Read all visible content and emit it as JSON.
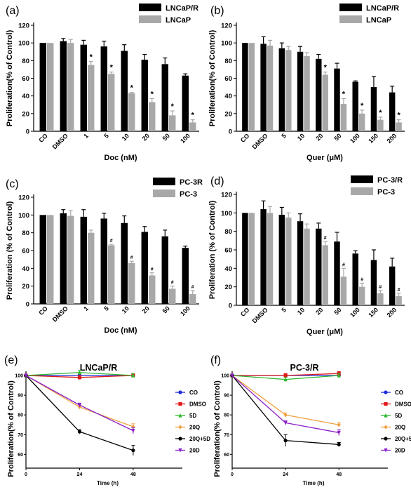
{
  "chart_data": [
    {
      "id": "a",
      "panel_label": "(a)",
      "type": "bar",
      "ylabel": "Proliferation(% of Control)",
      "xlabel": "Doc (nM)",
      "ylim": [
        0,
        120
      ],
      "yticks": [
        0,
        20,
        40,
        60,
        80,
        100,
        120
      ],
      "categories": [
        "CO",
        "DMSO",
        "1",
        "5",
        "10",
        "20",
        "50",
        "100"
      ],
      "series": [
        {
          "name": "LNCaP/R",
          "color": "#000000",
          "values": [
            100,
            102,
            98,
            96,
            91,
            81,
            76,
            63
          ],
          "errors": [
            0,
            3,
            5,
            6,
            7,
            6,
            7,
            2
          ]
        },
        {
          "name": "LNCaP",
          "color": "#a8a8a8",
          "values": [
            100,
            100,
            75,
            65,
            43,
            33,
            18,
            10
          ],
          "errors": [
            0,
            4,
            4,
            2,
            1,
            4,
            5,
            3
          ]
        }
      ],
      "annotations": [
        "",
        "",
        "*",
        "*",
        "*",
        "*",
        "*",
        "*"
      ],
      "legend_position": "top-right"
    },
    {
      "id": "b",
      "panel_label": "(b)",
      "type": "bar",
      "ylabel": "Proliferation(% of Control)",
      "xlabel": "Quer (μM)",
      "ylim": [
        0,
        120
      ],
      "yticks": [
        0,
        20,
        40,
        60,
        80,
        100,
        120
      ],
      "categories": [
        "CO",
        "DMSO",
        "5",
        "10",
        "20",
        "50",
        "100",
        "150",
        "200"
      ],
      "series": [
        {
          "name": "LNCaP/R",
          "color": "#000000",
          "values": [
            100,
            99,
            94,
            90,
            82,
            71,
            56,
            50,
            44
          ],
          "errors": [
            0,
            8,
            6,
            6,
            5,
            6,
            1,
            12,
            7
          ]
        },
        {
          "name": "LNCaP",
          "color": "#a8a8a8",
          "values": [
            100,
            97,
            92,
            85,
            64,
            31,
            20,
            13,
            10
          ],
          "errors": [
            0,
            6,
            4,
            4,
            3,
            6,
            4,
            3,
            3
          ]
        }
      ],
      "annotations": [
        "",
        "",
        "",
        "",
        "*",
        "*",
        "*",
        "*",
        "*"
      ],
      "legend_position": "top-right"
    },
    {
      "id": "c",
      "panel_label": "(c)",
      "type": "bar",
      "ylabel": "Proliferation (% of Control)",
      "xlabel": "Doc (nM)",
      "ylim": [
        0,
        120
      ],
      "yticks": [
        0,
        20,
        40,
        60,
        80,
        100,
        120
      ],
      "categories": [
        "CO",
        "DMSO",
        "1",
        "5",
        "10",
        "20",
        "50",
        "100"
      ],
      "series": [
        {
          "name": "PC-3R",
          "color": "#000000",
          "values": [
            100,
            102,
            98,
            96,
            91,
            81,
            76,
            63
          ],
          "errors": [
            0,
            4,
            8,
            6,
            8,
            6,
            7,
            2
          ]
        },
        {
          "name": "PC-3",
          "color": "#a8a8a8",
          "values": [
            100,
            99,
            80,
            66,
            46,
            32,
            17,
            11
          ],
          "errors": [
            0,
            6,
            3,
            1,
            2,
            3,
            3,
            4
          ]
        }
      ],
      "annotations": [
        "",
        "",
        "",
        "#",
        "#",
        "#",
        "#",
        "#"
      ],
      "legend_position": "top-right"
    },
    {
      "id": "d",
      "panel_label": "(d)",
      "type": "bar",
      "ylabel": "Proliferation (% of Control)",
      "xlabel": "Quer (μM)",
      "ylim": [
        0,
        120
      ],
      "yticks": [
        0,
        20,
        40,
        60,
        80,
        100,
        120
      ],
      "categories": [
        "CO",
        "DMSO",
        "5",
        "10",
        "20",
        "50",
        "100",
        "150",
        "200"
      ],
      "series": [
        {
          "name": "PC-3/R",
          "color": "#000000",
          "values": [
            100,
            104,
            98,
            91,
            83,
            69,
            56,
            49,
            42
          ],
          "errors": [
            0,
            9,
            8,
            8,
            6,
            10,
            3,
            11,
            9
          ]
        },
        {
          "name": "PC-3",
          "color": "#a8a8a8",
          "values": [
            100,
            100,
            95,
            83,
            65,
            31,
            20,
            13,
            10
          ],
          "errors": [
            0,
            7,
            5,
            5,
            4,
            9,
            4,
            3,
            3
          ]
        }
      ],
      "annotations": [
        "",
        "",
        "",
        "",
        "#",
        "#",
        "#",
        "#",
        "#"
      ],
      "legend_position": "top-right"
    },
    {
      "id": "e",
      "panel_label": "(e)",
      "type": "line",
      "title": "LNCaP/R",
      "ylabel": "Proliferation(% of Control)",
      "xlabel": "Time (h)",
      "x": [
        0,
        24,
        48
      ],
      "xticks": [
        0,
        24,
        48
      ],
      "xlim": [
        0,
        70
      ],
      "ylim": [
        53,
        100
      ],
      "yticks": [
        60,
        70,
        80,
        90,
        100
      ],
      "series": [
        {
          "name": "CO",
          "color": "#1d2bd8",
          "marker": "circle",
          "values": [
            100,
            100,
            100
          ],
          "errors": [
            0,
            0.5,
            0.5
          ]
        },
        {
          "name": "DMSO",
          "color": "#e01a1a",
          "marker": "square",
          "values": [
            100,
            99,
            100
          ],
          "errors": [
            0,
            1,
            1
          ]
        },
        {
          "name": "5D",
          "color": "#2fb82f",
          "marker": "triangle",
          "values": [
            100,
            101.5,
            100
          ],
          "errors": [
            0,
            1,
            1
          ]
        },
        {
          "name": "20Q",
          "color": "#f0a040",
          "marker": "diamond",
          "values": [
            100,
            84,
            74
          ],
          "errors": [
            0,
            1,
            1.5
          ]
        },
        {
          "name": "20Q+5D",
          "color": "#000000",
          "marker": "circle",
          "values": [
            100,
            71.5,
            62
          ],
          "errors": [
            0,
            1,
            2.5
          ]
        },
        {
          "name": "20D",
          "color": "#8a22c8",
          "marker": "triangle-down",
          "values": [
            100,
            85,
            72
          ],
          "errors": [
            0,
            1,
            1.5
          ]
        }
      ],
      "legend_position": "right"
    },
    {
      "id": "f",
      "panel_label": "(f)",
      "type": "line",
      "title": "PC-3/R",
      "ylabel": "Proliferation(% of Control)",
      "xlabel": "Time (h)",
      "x": [
        0,
        24,
        48
      ],
      "xticks": [
        0,
        24,
        48
      ],
      "xlim": [
        0,
        70
      ],
      "ylim": [
        53,
        100
      ],
      "yticks": [
        60,
        70,
        80,
        90,
        100
      ],
      "series": [
        {
          "name": "CO",
          "color": "#1d2bd8",
          "marker": "circle",
          "values": [
            100,
            100,
            100
          ],
          "errors": [
            0,
            0.5,
            0.5
          ]
        },
        {
          "name": "DMSO",
          "color": "#e01a1a",
          "marker": "square",
          "values": [
            100,
            100,
            101
          ],
          "errors": [
            0,
            1,
            1
          ]
        },
        {
          "name": "5D",
          "color": "#2fb82f",
          "marker": "triangle",
          "values": [
            100,
            98,
            100
          ],
          "errors": [
            0,
            1,
            1
          ]
        },
        {
          "name": "20Q",
          "color": "#f0a040",
          "marker": "diamond",
          "values": [
            100,
            80,
            75
          ],
          "errors": [
            0,
            1,
            1
          ]
        },
        {
          "name": "20Q+5D",
          "color": "#000000",
          "marker": "circle",
          "values": [
            100,
            67,
            65
          ],
          "errors": [
            0,
            3,
            1
          ]
        },
        {
          "name": "20D",
          "color": "#8a22c8",
          "marker": "triangle-down",
          "values": [
            100,
            76,
            71
          ],
          "errors": [
            0,
            1,
            1.5
          ]
        }
      ],
      "legend_position": "right"
    }
  ]
}
